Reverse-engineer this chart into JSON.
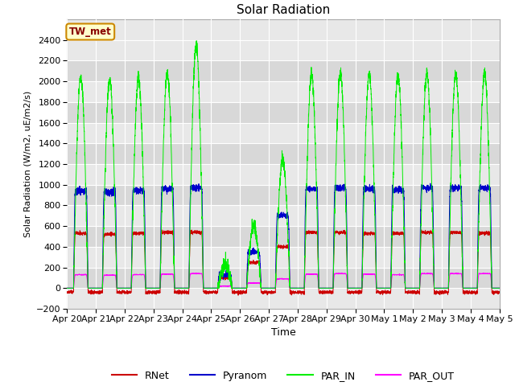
{
  "title": "Solar Radiation",
  "ylabel": "Solar Radiation (W/m2, uE/m2/s)",
  "xlabel": "Time",
  "ylim": [
    -200,
    2600
  ],
  "yticks": [
    -200,
    0,
    200,
    400,
    600,
    800,
    1000,
    1200,
    1400,
    1600,
    1800,
    2000,
    2200,
    2400
  ],
  "num_days": 15,
  "colors": {
    "RNet": "#cc0000",
    "Pyranom": "#0000cc",
    "PAR_IN": "#00ee00",
    "PAR_OUT": "#ff00ff"
  },
  "annotation_text": "TW_met",
  "annotation_color": "#880000",
  "annotation_bg": "#ffffcc",
  "annotation_edge": "#cc8800",
  "plot_bg": "#e8e8e8",
  "band_colors": [
    "#e8e8e8",
    "#d8d8d8"
  ],
  "band_yticks": [
    -200,
    0,
    200,
    400,
    600,
    800,
    1000,
    1200,
    1400,
    1600,
    1800,
    2000,
    2200,
    2400
  ],
  "par_in_peaks": [
    2050,
    2020,
    2030,
    2070,
    2350,
    230,
    600,
    1250,
    2060,
    2080,
    2060,
    2040,
    2070,
    2070,
    2080
  ],
  "pyranom_peaks": [
    940,
    930,
    940,
    960,
    970,
    130,
    350,
    700,
    960,
    970,
    960,
    950,
    970,
    970,
    970
  ],
  "rnet_peaks": [
    530,
    520,
    530,
    540,
    540,
    100,
    250,
    400,
    540,
    540,
    530,
    530,
    540,
    540,
    530
  ],
  "par_out_peaks": [
    130,
    125,
    130,
    135,
    140,
    20,
    50,
    90,
    135,
    140,
    135,
    130,
    140,
    140,
    140
  ]
}
